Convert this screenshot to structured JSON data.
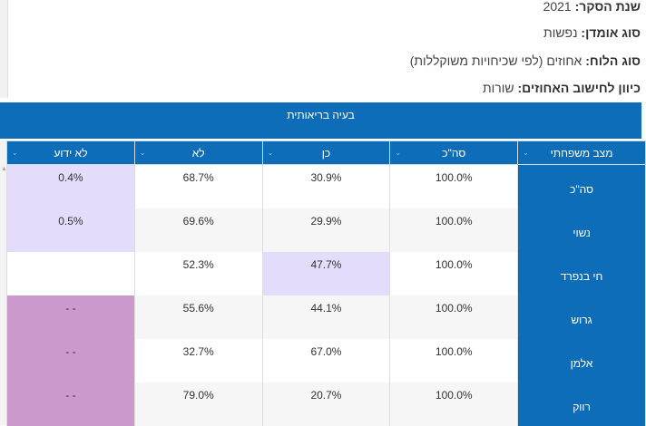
{
  "meta": [
    {
      "label": "שנת הסקר:",
      "value": "2021"
    },
    {
      "label": "סוג אומדן:",
      "value": "נפשות"
    },
    {
      "label": "סוג הלוח:",
      "value": "אחוזים (לפי שכיחויות משוקללות)"
    },
    {
      "label": "כיוון לחישוב האחוזים:",
      "value": "שורות"
    }
  ],
  "table": {
    "group_header": "בעיה בריאותית",
    "columns": [
      "לא ידוע",
      "לא",
      "כן",
      "סה\"כ",
      "מצב משפחתי"
    ],
    "rows": [
      {
        "category": "סה\"כ",
        "total": "100.0%",
        "yes": "30.9%",
        "no": "68.7%",
        "unknown": "0.4%"
      },
      {
        "category": "נשוי",
        "total": "100.0%",
        "yes": "29.9%",
        "no": "69.6%",
        "unknown": "0.5%"
      },
      {
        "category": "חי בנפרד",
        "total": "100.0%",
        "yes": "47.7%",
        "no": "52.3%",
        "unknown": ""
      },
      {
        "category": "גרוש",
        "total": "100.0%",
        "yes": "44.1%",
        "no": "55.6%",
        "unknown": "- -"
      },
      {
        "category": "אלמן",
        "total": "100.0%",
        "yes": "67.0%",
        "no": "32.7%",
        "unknown": "- -"
      },
      {
        "category": "רווק",
        "total": "100.0%",
        "yes": "20.7%",
        "no": "79.0%",
        "unknown": "- -"
      }
    ]
  },
  "colors": {
    "header": "#0e6db8",
    "lavender": "#e3dcfb",
    "purple": "#cc99cc"
  }
}
